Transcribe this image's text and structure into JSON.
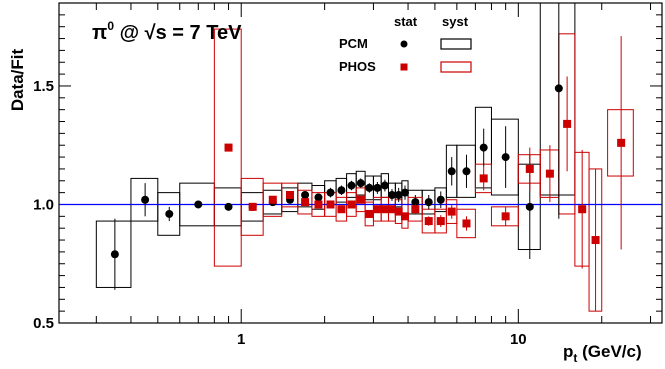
{
  "chart_data": {
    "type": "scatter",
    "title": "π⁰ @ √s = 7 TeV",
    "title_parts": {
      "particle": "π",
      "particle_sup": "0",
      "at": "@",
      "sqrt": "√",
      "s_eq": "s = 7 TeV"
    },
    "xlabel": "p",
    "xlabel_sub": "t",
    "xlabel_unit": "(GeV/c)",
    "ylabel": "Data/Fit",
    "x_scale": "log",
    "xlim": [
      0.22,
      33
    ],
    "ylim": [
      0.5,
      1.85
    ],
    "x_ticks": [
      {
        "value": 1,
        "label": "1"
      },
      {
        "value": 10,
        "label": "10"
      }
    ],
    "y_ticks": [
      {
        "value": 0.5,
        "label": "0.5"
      },
      {
        "value": 1.0,
        "label": "1.0"
      },
      {
        "value": 1.5,
        "label": "1.5"
      }
    ],
    "reference_line": {
      "y": 1.0,
      "color": "#0000ff"
    },
    "legend": {
      "position": "top-center",
      "stat_header": "stat",
      "syst_header": "syst",
      "entries": [
        {
          "label": "PCM",
          "color": "#000000",
          "marker": "circle"
        },
        {
          "label": "PHOS",
          "color": "#cc0000",
          "marker": "square"
        }
      ]
    },
    "series": [
      {
        "name": "PCM",
        "color": "#000000",
        "marker": "circle",
        "points": [
          {
            "x": 0.35,
            "xlo": 0.3,
            "xhi": 0.4,
            "y": 0.79,
            "stat": 0.15,
            "syst": 0.14
          },
          {
            "x": 0.45,
            "xlo": 0.4,
            "xhi": 0.5,
            "y": 1.02,
            "stat": 0.07,
            "syst": 0.09
          },
          {
            "x": 0.55,
            "xlo": 0.5,
            "xhi": 0.6,
            "y": 0.96,
            "stat": 0.03,
            "syst": 0.09
          },
          {
            "x": 0.7,
            "xlo": 0.6,
            "xhi": 0.8,
            "y": 1.0,
            "stat": 0.01,
            "syst": 0.09
          },
          {
            "x": 0.9,
            "xlo": 0.8,
            "xhi": 1.0,
            "y": 0.99,
            "stat": 0.01,
            "syst": 0.08
          },
          {
            "x": 1.1,
            "xlo": 1.0,
            "xhi": 1.2,
            "y": 0.99,
            "stat": 0.01,
            "syst": 0.06
          },
          {
            "x": 1.3,
            "xlo": 1.2,
            "xhi": 1.4,
            "y": 1.01,
            "stat": 0.01,
            "syst": 0.05
          },
          {
            "x": 1.5,
            "xlo": 1.4,
            "xhi": 1.6,
            "y": 1.02,
            "stat": 0.01,
            "syst": 0.05
          },
          {
            "x": 1.7,
            "xlo": 1.6,
            "xhi": 1.8,
            "y": 1.04,
            "stat": 0.015,
            "syst": 0.05
          },
          {
            "x": 1.9,
            "xlo": 1.8,
            "xhi": 2.0,
            "y": 1.03,
            "stat": 0.015,
            "syst": 0.05
          },
          {
            "x": 2.1,
            "xlo": 2.0,
            "xhi": 2.2,
            "y": 1.05,
            "stat": 0.02,
            "syst": 0.05
          },
          {
            "x": 2.3,
            "xlo": 2.2,
            "xhi": 2.4,
            "y": 1.06,
            "stat": 0.02,
            "syst": 0.05
          },
          {
            "x": 2.5,
            "xlo": 2.4,
            "xhi": 2.6,
            "y": 1.08,
            "stat": 0.02,
            "syst": 0.05
          },
          {
            "x": 2.7,
            "xlo": 2.6,
            "xhi": 2.8,
            "y": 1.09,
            "stat": 0.02,
            "syst": 0.05
          },
          {
            "x": 2.9,
            "xlo": 2.8,
            "xhi": 3.0,
            "y": 1.07,
            "stat": 0.02,
            "syst": 0.05
          },
          {
            "x": 3.1,
            "xlo": 3.0,
            "xhi": 3.2,
            "y": 1.07,
            "stat": 0.025,
            "syst": 0.05
          },
          {
            "x": 3.3,
            "xlo": 3.2,
            "xhi": 3.4,
            "y": 1.08,
            "stat": 0.025,
            "syst": 0.05
          },
          {
            "x": 3.5,
            "xlo": 3.4,
            "xhi": 3.6,
            "y": 1.04,
            "stat": 0.025,
            "syst": 0.05
          },
          {
            "x": 3.7,
            "xlo": 3.6,
            "xhi": 3.8,
            "y": 1.04,
            "stat": 0.03,
            "syst": 0.05
          },
          {
            "x": 3.9,
            "xlo": 3.8,
            "xhi": 4.0,
            "y": 1.05,
            "stat": 0.03,
            "syst": 0.05
          },
          {
            "x": 4.25,
            "xlo": 4.0,
            "xhi": 4.5,
            "y": 1.01,
            "stat": 0.03,
            "syst": 0.05
          },
          {
            "x": 4.75,
            "xlo": 4.5,
            "xhi": 5.0,
            "y": 1.01,
            "stat": 0.03,
            "syst": 0.05
          },
          {
            "x": 5.25,
            "xlo": 5.0,
            "xhi": 5.5,
            "y": 1.02,
            "stat": 0.035,
            "syst": 0.05
          },
          {
            "x": 5.75,
            "xlo": 5.5,
            "xhi": 6.0,
            "y": 1.14,
            "stat": 0.06,
            "syst": 0.11
          },
          {
            "x": 6.5,
            "xlo": 6.0,
            "xhi": 7.0,
            "y": 1.14,
            "stat": 0.07,
            "syst": 0.11
          },
          {
            "x": 7.5,
            "xlo": 7.0,
            "xhi": 8.0,
            "y": 1.24,
            "stat": 0.08,
            "syst": 0.17
          },
          {
            "x": 9.0,
            "xlo": 8.0,
            "xhi": 10.0,
            "y": 1.2,
            "stat": 0.13,
            "syst": 0.16
          },
          {
            "x": 11.0,
            "xlo": 10.0,
            "xhi": 12.0,
            "y": 0.99,
            "stat": 0.22,
            "syst": 0.18
          },
          {
            "x": 14.0,
            "xlo": 12.0,
            "xhi": 16.0,
            "y": 1.49,
            "stat": 0.55,
            "syst": 0.45
          }
        ]
      },
      {
        "name": "PHOS",
        "color": "#cc0000",
        "marker": "square",
        "points": [
          {
            "x": 0.9,
            "xlo": 0.8,
            "xhi": 1.0,
            "y": 1.24,
            "stat": 0.01,
            "syst": 0.5
          },
          {
            "x": 1.1,
            "xlo": 1.0,
            "xhi": 1.2,
            "y": 0.99,
            "stat": 0.01,
            "syst": 0.12
          },
          {
            "x": 1.3,
            "xlo": 1.2,
            "xhi": 1.4,
            "y": 1.02,
            "stat": 0.01,
            "syst": 0.07
          },
          {
            "x": 1.5,
            "xlo": 1.4,
            "xhi": 1.6,
            "y": 1.04,
            "stat": 0.01,
            "syst": 0.05
          },
          {
            "x": 1.7,
            "xlo": 1.6,
            "xhi": 1.8,
            "y": 1.01,
            "stat": 0.01,
            "syst": 0.05
          },
          {
            "x": 1.9,
            "xlo": 1.8,
            "xhi": 2.0,
            "y": 1.0,
            "stat": 0.01,
            "syst": 0.05
          },
          {
            "x": 2.1,
            "xlo": 2.0,
            "xhi": 2.2,
            "y": 1.0,
            "stat": 0.01,
            "syst": 0.05
          },
          {
            "x": 2.3,
            "xlo": 2.2,
            "xhi": 2.4,
            "y": 0.98,
            "stat": 0.01,
            "syst": 0.05
          },
          {
            "x": 2.5,
            "xlo": 2.4,
            "xhi": 2.6,
            "y": 1.0,
            "stat": 0.01,
            "syst": 0.05
          },
          {
            "x": 2.7,
            "xlo": 2.6,
            "xhi": 2.8,
            "y": 1.02,
            "stat": 0.01,
            "syst": 0.05
          },
          {
            "x": 2.9,
            "xlo": 2.8,
            "xhi": 3.0,
            "y": 0.96,
            "stat": 0.01,
            "syst": 0.05
          },
          {
            "x": 3.1,
            "xlo": 3.0,
            "xhi": 3.2,
            "y": 0.98,
            "stat": 0.01,
            "syst": 0.05
          },
          {
            "x": 3.3,
            "xlo": 3.2,
            "xhi": 3.4,
            "y": 0.98,
            "stat": 0.01,
            "syst": 0.05
          },
          {
            "x": 3.5,
            "xlo": 3.4,
            "xhi": 3.6,
            "y": 0.98,
            "stat": 0.015,
            "syst": 0.05
          },
          {
            "x": 3.7,
            "xlo": 3.6,
            "xhi": 3.8,
            "y": 0.97,
            "stat": 0.015,
            "syst": 0.05
          },
          {
            "x": 3.9,
            "xlo": 3.8,
            "xhi": 4.0,
            "y": 0.95,
            "stat": 0.015,
            "syst": 0.05
          },
          {
            "x": 4.25,
            "xlo": 4.0,
            "xhi": 4.5,
            "y": 0.98,
            "stat": 0.02,
            "syst": 0.05
          },
          {
            "x": 4.75,
            "xlo": 4.5,
            "xhi": 5.0,
            "y": 0.93,
            "stat": 0.02,
            "syst": 0.05
          },
          {
            "x": 5.25,
            "xlo": 5.0,
            "xhi": 5.5,
            "y": 0.93,
            "stat": 0.025,
            "syst": 0.05
          },
          {
            "x": 5.75,
            "xlo": 5.5,
            "xhi": 6.0,
            "y": 0.97,
            "stat": 0.03,
            "syst": 0.05
          },
          {
            "x": 6.5,
            "xlo": 6.0,
            "xhi": 7.0,
            "y": 0.92,
            "stat": 0.03,
            "syst": 0.06
          },
          {
            "x": 7.5,
            "xlo": 7.0,
            "xhi": 8.0,
            "y": 1.11,
            "stat": 0.05,
            "syst": 0.06
          },
          {
            "x": 9.0,
            "xlo": 8.0,
            "xhi": 10.0,
            "y": 0.95,
            "stat": 0.04,
            "syst": 0.04
          },
          {
            "x": 11.0,
            "xlo": 10.0,
            "xhi": 12.0,
            "y": 1.15,
            "stat": 0.09,
            "syst": 0.06
          },
          {
            "x": 13.0,
            "xlo": 12.0,
            "xhi": 14.0,
            "y": 1.13,
            "stat": 0.12,
            "syst": 0.1
          },
          {
            "x": 15.0,
            "xlo": 14.0,
            "xhi": 16.0,
            "y": 1.34,
            "stat": 0.2,
            "syst": 0.38
          },
          {
            "x": 17.0,
            "xlo": 16.0,
            "xhi": 18.0,
            "y": 0.98,
            "stat": 0.25,
            "syst": 0.24
          },
          {
            "x": 19.0,
            "xlo": 18.0,
            "xhi": 20.0,
            "y": 0.85,
            "stat": 0.3,
            "syst": 0.3
          },
          {
            "x": 23.5,
            "xlo": 21.0,
            "xhi": 26.0,
            "y": 1.26,
            "stat": 0.45,
            "syst": 0.14
          }
        ]
      }
    ]
  }
}
